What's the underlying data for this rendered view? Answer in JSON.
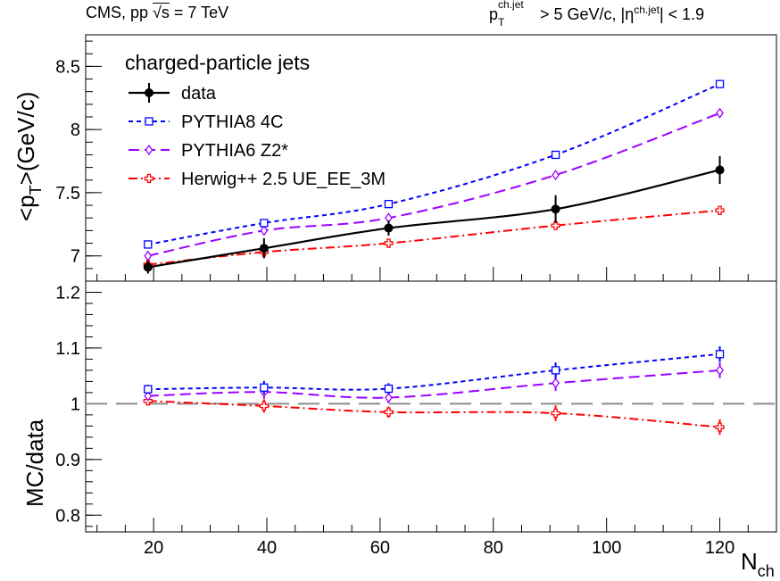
{
  "header": {
    "left_main": "CMS, pp ",
    "left_sqrt": "√s",
    "left_energy": " = 7 TeV",
    "right_p": "p",
    "right_p_sup": "ch.jet",
    "right_p_sub": "T",
    "right_mid": " > 5 GeV/c, |η",
    "right_eta_sup": "ch.jet",
    "right_end": "| < 1.9"
  },
  "chart_data": [
    {
      "type": "line",
      "panel": "top",
      "ylabel_main": "<p",
      "ylabel_sub": "T",
      "ylabel_end": ">(GeV/c)",
      "xlim": [
        8,
        130
      ],
      "ylim": [
        6.8,
        8.75
      ],
      "yticks": [
        "7",
        "7.5",
        "8",
        "8.5"
      ],
      "xticks": [
        "20",
        "40",
        "60",
        "80",
        "100",
        "120"
      ],
      "legend_title": "charged-particle jets",
      "legend_position": "top-left",
      "series": [
        {
          "name": "data",
          "color": "#000000",
          "marker": "filled-circle",
          "style": "solid",
          "x": [
            19,
            39.5,
            61.5,
            91,
            120
          ],
          "y": [
            6.91,
            7.06,
            7.22,
            7.37,
            7.68
          ],
          "err": [
            0.05,
            0.08,
            0.06,
            0.11,
            0.11
          ]
        },
        {
          "name": "PYTHIA8 4C",
          "color": "#0000ff",
          "marker": "open-square",
          "style": "dotted",
          "x": [
            19,
            39.5,
            61.5,
            91,
            120
          ],
          "y": [
            7.09,
            7.26,
            7.41,
            7.8,
            8.36
          ]
        },
        {
          "name": "PYTHIA6 Z2*",
          "color": "#9d00ff",
          "marker": "open-diamond",
          "style": "dashed",
          "x": [
            19,
            39.5,
            61.5,
            91,
            120
          ],
          "y": [
            7.0,
            7.2,
            7.3,
            7.64,
            8.13
          ]
        },
        {
          "name": "Herwig++ 2.5  UE_EE_3M",
          "color": "#ff0000",
          "marker": "open-cross",
          "style": "dashdot",
          "x": [
            19,
            39.5,
            61.5,
            91,
            120
          ],
          "y": [
            6.93,
            7.03,
            7.1,
            7.24,
            7.36
          ]
        }
      ]
    },
    {
      "type": "line",
      "panel": "bottom",
      "ylabel": "MC/data",
      "xlabel_main": "N",
      "xlabel_sub": "ch",
      "xlim": [
        8,
        130
      ],
      "ylim": [
        0.77,
        1.22
      ],
      "yticks": [
        "0.8",
        "0.9",
        "1",
        "1.1",
        "1.2"
      ],
      "xticks": [
        "20",
        "40",
        "60",
        "80",
        "100",
        "120"
      ],
      "reference_line": 1.0,
      "series": [
        {
          "name": "PYTHIA8 4C",
          "color": "#0000ff",
          "marker": "open-square",
          "style": "dotted",
          "x": [
            19,
            39.5,
            61.5,
            91,
            120
          ],
          "y": [
            1.026,
            1.029,
            1.027,
            1.06,
            1.089
          ],
          "err": [
            0.008,
            0.012,
            0.01,
            0.014,
            0.014
          ]
        },
        {
          "name": "PYTHIA6 Z2*",
          "color": "#9d00ff",
          "marker": "open-diamond",
          "style": "dashed",
          "x": [
            19,
            39.5,
            61.5,
            91,
            120
          ],
          "y": [
            1.014,
            1.021,
            1.011,
            1.037,
            1.06
          ],
          "err": [
            0.008,
            0.012,
            0.01,
            0.014,
            0.014
          ]
        },
        {
          "name": "Herwig++ 2.5  UE_EE_3M",
          "color": "#ff0000",
          "marker": "open-cross",
          "style": "dashdot",
          "x": [
            19,
            39.5,
            61.5,
            91,
            120
          ],
          "y": [
            1.005,
            0.996,
            0.985,
            0.983,
            0.958
          ],
          "err": [
            0.008,
            0.012,
            0.01,
            0.014,
            0.014
          ]
        }
      ]
    }
  ]
}
